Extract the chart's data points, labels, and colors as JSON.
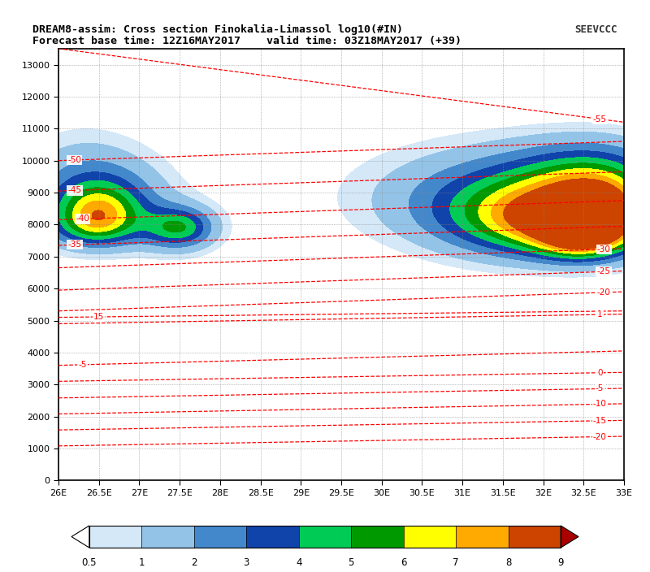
{
  "title_line1": "DREAM8-assim: Cross section Finokalia-Limassol log10(#IN)",
  "title_line2": "Forecast base time: 12Z16MAY2017    valid time: 03Z18MAY2017 (+39)",
  "x_min": 26.0,
  "x_max": 33.0,
  "y_min": 0,
  "y_max": 13500,
  "x_ticks": [
    26.0,
    26.5,
    27.0,
    27.5,
    28.0,
    28.5,
    29.0,
    29.5,
    30.0,
    30.5,
    31.0,
    31.5,
    32.0,
    32.5,
    33.0
  ],
  "x_tick_labels": [
    "26E",
    "26.5E",
    "27E",
    "27.5E",
    "28E",
    "28.5E",
    "29E",
    "29.5E",
    "30E",
    "30.5E",
    "31E",
    "31.5E",
    "32E",
    "32.5E",
    "33E"
  ],
  "y_ticks": [
    0,
    1000,
    2000,
    3000,
    4000,
    5000,
    6000,
    7000,
    8000,
    9000,
    10000,
    11000,
    12000,
    13000
  ],
  "fill_levels": [
    0.5,
    1.0,
    2.0,
    3.0,
    4.0,
    5.0,
    6.0,
    7.0,
    8.0,
    9.0
  ],
  "fill_colors": [
    "#d4e8f8",
    "#93c4e8",
    "#4488cc",
    "#1144aa",
    "#00cc55",
    "#009900",
    "#ffff00",
    "#ffaa00",
    "#cc4400"
  ],
  "cb_colors": [
    "#d4e8f8",
    "#93c4e8",
    "#4488cc",
    "#1144aa",
    "#00cc55",
    "#009900",
    "#ffff00",
    "#ffaa00",
    "#cc4400"
  ],
  "cb_labels": [
    "0.5",
    "1",
    "2",
    "3",
    "4",
    "5",
    "6",
    "7",
    "8",
    "9"
  ],
  "bg_color": "#ffffff",
  "temp_lines": [
    [
      13500,
      11200,
      "-55",
      32.7,
      "right"
    ],
    [
      10000,
      10600,
      "-50",
      26.2,
      "left"
    ],
    [
      9050,
      9650,
      "-45",
      26.2,
      "left"
    ],
    [
      8150,
      8750,
      "-40",
      26.3,
      "left"
    ],
    [
      7350,
      7950,
      "-35",
      26.2,
      "left"
    ],
    [
      6650,
      7250,
      "-30",
      32.75,
      "right"
    ],
    [
      5950,
      6550,
      "-25",
      32.75,
      "right"
    ],
    [
      5300,
      5900,
      "-20",
      32.75,
      "right"
    ],
    [
      5100,
      5300,
      "15",
      26.5,
      "left"
    ],
    [
      4900,
      5200,
      "1",
      32.7,
      "right"
    ],
    [
      3600,
      4050,
      "-5",
      26.3,
      "left"
    ],
    [
      3100,
      3380,
      "0",
      32.7,
      "right"
    ],
    [
      2580,
      2880,
      "-5",
      32.7,
      "right"
    ],
    [
      2080,
      2400,
      "-10",
      32.7,
      "right"
    ],
    [
      1580,
      1880,
      "-15",
      32.7,
      "right"
    ],
    [
      1080,
      1380,
      "-20",
      32.7,
      "right"
    ]
  ]
}
